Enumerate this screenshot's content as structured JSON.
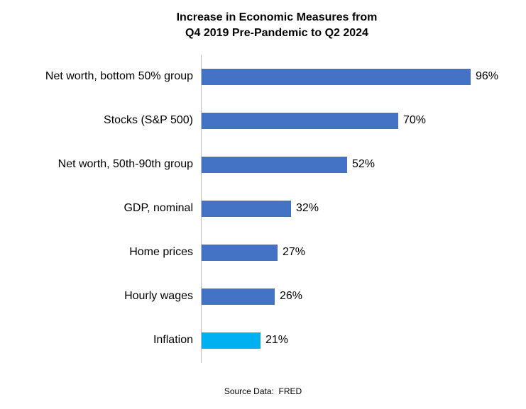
{
  "title": {
    "line1": "Increase in Economic Measures from",
    "line2": "Q4 2019 Pre-Pandemic to Q2 2024"
  },
  "source_note": "Source Data:  FRED",
  "colors": {
    "bar": "#4472C4",
    "highlight": "#00B0F0",
    "axis": "#BFBFBF"
  },
  "chart_data": {
    "type": "bar",
    "orientation": "horizontal",
    "title": "Increase in Economic Measures from Q4 2019 Pre-Pandemic to Q2 2024",
    "categories": [
      "Net worth, bottom 50% group",
      "Stocks (S&P 500)",
      "Net worth, 50th-90th group",
      "GDP, nominal",
      "Home prices",
      "Hourly wages",
      "Inflation"
    ],
    "values": [
      96,
      70,
      52,
      32,
      27,
      26,
      21
    ],
    "value_labels": [
      "96%",
      "70%",
      "52%",
      "32%",
      "27%",
      "26%",
      "21%"
    ],
    "xlim": [
      0,
      100
    ],
    "bar_color": "#4472C4",
    "highlight_color": "#00B0F0",
    "highlight_index": 6,
    "grid": false,
    "legend": false,
    "value_label_position": "end-of-bar",
    "source": "Source Data:  FRED"
  }
}
